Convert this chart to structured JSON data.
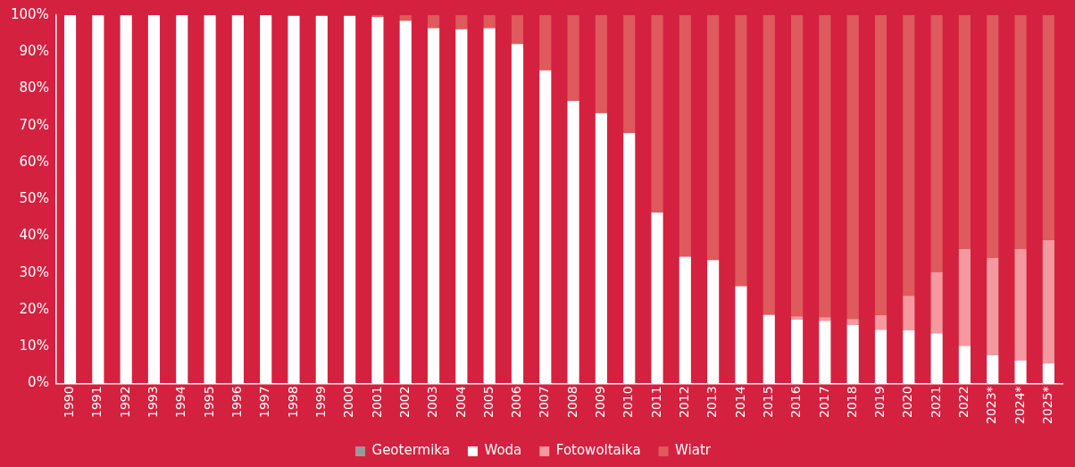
{
  "chart_data": {
    "type": "bar",
    "stacked": true,
    "categories": [
      "1990",
      "1991",
      "1992",
      "1993",
      "1994",
      "1995",
      "1996",
      "1997",
      "1998",
      "1999",
      "2000",
      "2001",
      "2002",
      "2003",
      "2004",
      "2005",
      "2006",
      "2007",
      "2008",
      "2009",
      "2010",
      "2011",
      "2012",
      "2013",
      "2014",
      "2015",
      "2016",
      "2017",
      "2018",
      "2019",
      "2020",
      "2021",
      "2022",
      "2023*",
      "2024*",
      "2025*"
    ],
    "series": [
      {
        "name": "Geotermika",
        "color": "#9a9a9a",
        "values": [
          0,
          0,
          0,
          0,
          0,
          0,
          0,
          0,
          0,
          0,
          0,
          0,
          0,
          0,
          0,
          0,
          0,
          0,
          0,
          0,
          0,
          0,
          0,
          0,
          0,
          0,
          0,
          0,
          0,
          0,
          0,
          0,
          0,
          0,
          0,
          0
        ]
      },
      {
        "name": "Woda",
        "color": "#ffffff",
        "values": [
          100,
          100,
          100,
          100,
          100,
          100,
          100,
          100,
          99.8,
          99.8,
          99.8,
          99.5,
          98.5,
          96.5,
          96.2,
          96.5,
          92.2,
          85,
          76.7,
          73.4,
          68,
          46.4,
          34.4,
          33.5,
          26.4,
          18.6,
          17.3,
          17,
          15.9,
          14.6,
          14.4,
          13.6,
          10.2,
          7.6,
          6.3,
          5.4
        ]
      },
      {
        "name": "Fotowoltaika",
        "color": "#f4999f",
        "values": [
          0,
          0,
          0,
          0,
          0,
          0,
          0,
          0,
          0,
          0,
          0,
          0,
          0,
          0,
          0,
          0,
          0,
          0,
          0,
          0,
          0,
          0,
          0,
          0,
          0,
          0.1,
          0.9,
          1,
          1.6,
          3.9,
          9.4,
          16.6,
          26.3,
          26.5,
          30.2,
          33.5
        ]
      },
      {
        "name": "Wiatr",
        "color": "#de5a5c",
        "values": [
          0,
          0,
          0,
          0,
          0,
          0,
          0,
          0,
          null,
          null,
          null,
          0.5,
          1.5,
          3.5,
          3.8,
          3.5,
          7.8,
          15,
          23.3,
          26.6,
          32,
          53.6,
          65.6,
          66.5,
          73.6,
          81.3,
          81.8,
          82,
          82.5,
          81.5,
          76.2,
          69.8,
          63.5,
          65.9,
          63.5,
          61.1
        ]
      }
    ],
    "ylim": [
      0,
      100
    ],
    "yticks": [
      {
        "value": 0,
        "label": "0%"
      },
      {
        "value": 10,
        "label": "10%"
      },
      {
        "value": 20,
        "label": "20%"
      },
      {
        "value": 30,
        "label": "30%"
      },
      {
        "value": 40,
        "label": "40%"
      },
      {
        "value": 50,
        "label": "50%"
      },
      {
        "value": 60,
        "label": "60%"
      },
      {
        "value": 70,
        "label": "70%"
      },
      {
        "value": 80,
        "label": "80%"
      },
      {
        "value": 90,
        "label": "90%"
      },
      {
        "value": 100,
        "label": "100%"
      }
    ],
    "grid": false,
    "legend": "bottom"
  }
}
